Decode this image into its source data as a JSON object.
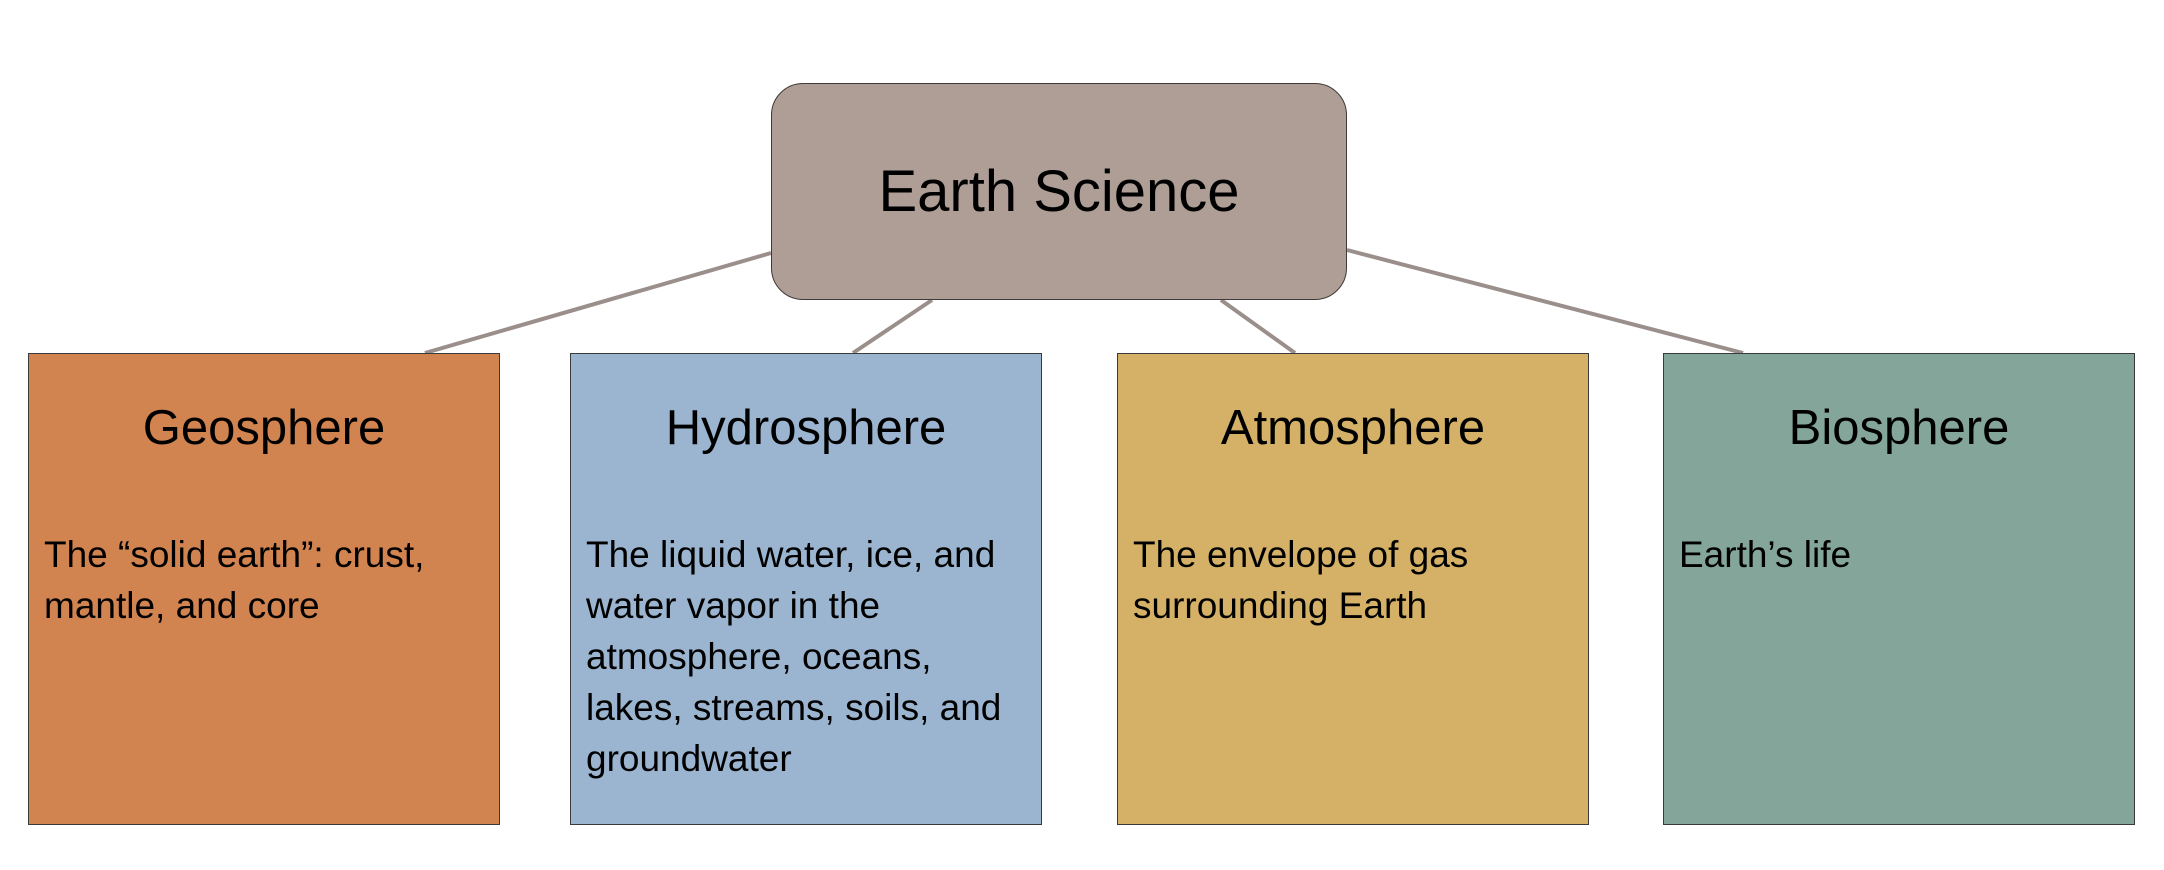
{
  "root": {
    "title": "Earth Science",
    "color": "#ae9e96"
  },
  "spheres": [
    {
      "title": "Geosphere",
      "description": "The “solid earth”: crust, mantle, and core",
      "color": "#d18350"
    },
    {
      "title": "Hydrosphere",
      "description": "The liquid water, ice, and water vapor in the atmosphere, oceans, lakes, streams, soils, and groundwater",
      "color": "#9bb4cf"
    },
    {
      "title": "Atmosphere",
      "description": "The envelope of gas surrounding Earth",
      "color": "#d4b166"
    },
    {
      "title": "Biosphere",
      "description": "Earth’s life",
      "color": "#84a59a"
    }
  ],
  "connector_color": "#9a8f8b"
}
